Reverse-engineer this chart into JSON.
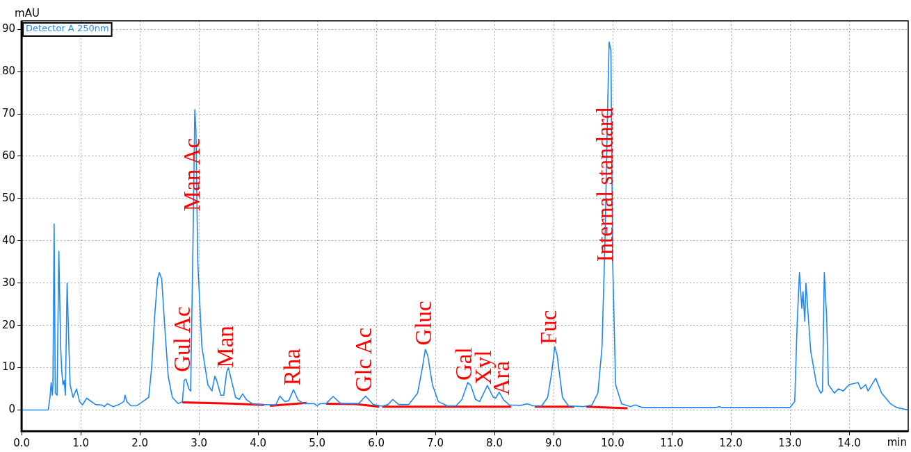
{
  "chart_data": {
    "type": "line",
    "ylabel": "mAU",
    "xlabel": "min",
    "legend": "top left",
    "grid": true,
    "marker": "none",
    "line_style": "solid",
    "xlim": [
      0,
      15
    ],
    "ylim": [
      -5,
      92
    ],
    "xticks": [
      {
        "value": 0,
        "label": "0.0"
      },
      {
        "value": 1,
        "label": "1.0"
      },
      {
        "value": 2,
        "label": "2.0"
      },
      {
        "value": 3,
        "label": "3.0"
      },
      {
        "value": 4,
        "label": "4.0"
      },
      {
        "value": 5,
        "label": "5.0"
      },
      {
        "value": 6,
        "label": "6.0"
      },
      {
        "value": 7,
        "label": "7.0"
      },
      {
        "value": 8,
        "label": "8.0"
      },
      {
        "value": 9,
        "label": "9.0"
      },
      {
        "value": 10,
        "label": "10.0"
      },
      {
        "value": 11,
        "label": "11.0"
      },
      {
        "value": 12,
        "label": "12.0"
      },
      {
        "value": 13,
        "label": "13.0"
      },
      {
        "value": 14,
        "label": "14.0"
      }
    ],
    "yticks": [
      0,
      10,
      20,
      30,
      40,
      50,
      60,
      70,
      80,
      90
    ],
    "series": [
      {
        "name": "Detector A 250nm",
        "color": "#1e88f0",
        "x": [
          0,
          0.45,
          0.48,
          0.5,
          0.52,
          0.53,
          0.55,
          0.57,
          0.6,
          0.63,
          0.66,
          0.68,
          0.7,
          0.72,
          0.74,
          0.77,
          0.8,
          0.82,
          0.87,
          0.93,
          0.98,
          1.03,
          1.1,
          1.15,
          1.25,
          1.35,
          1.4,
          1.45,
          1.55,
          1.65,
          1.73,
          1.75,
          1.78,
          1.85,
          1.95,
          2.05,
          2.15,
          2.2,
          2.25,
          2.3,
          2.33,
          2.37,
          2.42,
          2.48,
          2.55,
          2.65,
          2.72,
          2.75,
          2.78,
          2.83,
          2.86,
          2.9,
          2.93,
          2.95,
          2.98,
          3.05,
          3.15,
          3.22,
          3.27,
          3.3,
          3.37,
          3.42,
          3.47,
          3.5,
          3.55,
          3.62,
          3.68,
          3.74,
          3.8,
          3.9,
          4.05,
          4.3,
          4.37,
          4.45,
          4.52,
          4.6,
          4.68,
          4.78,
          4.95,
          5.0,
          5.05,
          5.15,
          5.27,
          5.4,
          5.7,
          5.82,
          5.95,
          6.1,
          6.2,
          6.28,
          6.38,
          6.55,
          6.7,
          6.78,
          6.83,
          6.87,
          6.95,
          7.05,
          7.2,
          7.35,
          7.45,
          7.55,
          7.6,
          7.68,
          7.75,
          7.88,
          7.98,
          8.02,
          8.08,
          8.15,
          8.25,
          8.45,
          8.55,
          8.65,
          8.8,
          8.9,
          8.97,
          9.02,
          9.06,
          9.15,
          9.25,
          9.5,
          9.65,
          9.75,
          9.82,
          9.87,
          9.92,
          9.94,
          9.97,
          10.0,
          10.05,
          10.15,
          10.3,
          10.38,
          10.5,
          11.75,
          11.8,
          11.85,
          13.0,
          13.08,
          13.12,
          13.16,
          13.2,
          13.22,
          13.25,
          13.27,
          13.3,
          13.35,
          13.4,
          13.45,
          13.52,
          13.55,
          13.58,
          13.62,
          13.65,
          13.75,
          13.82,
          13.9,
          14.0,
          14.15,
          14.2,
          14.28,
          14.32,
          14.45,
          14.55,
          14.7,
          14.8,
          15
        ],
        "values": [
          0,
          0,
          3,
          6.5,
          3.5,
          6,
          44,
          4,
          3.5,
          37.5,
          15,
          9,
          6,
          7,
          3.5,
          30,
          15,
          6,
          3,
          5,
          2,
          1.2,
          2.8,
          2.3,
          1.3,
          1.2,
          0.8,
          1.5,
          0.8,
          1.3,
          2,
          3.5,
          2,
          1,
          1,
          2,
          3,
          10,
          22,
          31,
          32.5,
          31,
          20,
          8,
          3,
          1.5,
          2,
          7,
          7.3,
          5,
          4.5,
          40,
          71,
          66,
          35,
          15,
          6,
          4.5,
          8,
          7,
          3.5,
          3.5,
          9,
          10,
          7,
          3,
          2.5,
          3.8,
          2.5,
          1.5,
          1.3,
          1.2,
          3.3,
          2,
          2.2,
          4.8,
          2.3,
          1.5,
          1.5,
          1,
          1.5,
          1.5,
          3.2,
          1.5,
          1.5,
          3.3,
          1.3,
          0.9,
          1.3,
          2.5,
          1.3,
          1.3,
          4,
          10,
          14.3,
          13,
          6,
          2,
          1,
          1,
          2.5,
          6.5,
          5.8,
          2.5,
          2,
          5.8,
          3,
          2.8,
          4.2,
          2.5,
          1.2,
          1.1,
          1.5,
          1,
          1,
          3,
          9,
          15,
          13,
          3,
          1,
          0.8,
          1.2,
          4,
          15,
          40,
          75,
          87,
          85,
          35,
          6,
          1.5,
          0.8,
          1.2,
          0.6,
          0.6,
          0.8,
          0.6,
          0.6,
          2,
          20,
          32.5,
          24,
          28,
          21,
          30,
          24,
          14,
          10,
          6,
          4,
          4.5,
          32.5,
          22,
          6,
          4,
          5,
          4.5,
          6,
          6.5,
          5,
          6,
          4.5,
          7.5,
          4,
          1.5,
          0.6,
          0
        ]
      },
      {
        "color": "#ff0000",
        "x": [
          2.72,
          3.62,
          4.1,
          4.15,
          4.2,
          4.82,
          4.9,
          5.15,
          5.65,
          6.05,
          6.08,
          6.1,
          8.28,
          8.5,
          8.68,
          9.35,
          9.45,
          9.55,
          10.25
        ],
        "values": [
          1.8,
          1.5,
          1.2,
          null,
          1.0,
          1.7,
          null,
          1.5,
          1.4,
          0.8,
          null,
          0.8,
          0.8,
          null,
          0.8,
          0.8,
          null,
          0.8,
          0.4
        ]
      }
    ],
    "annotations": [
      {
        "text": "Gul Ac",
        "x": 2.74,
        "y": 8
      },
      {
        "text": "Man Ac",
        "x": 2.91,
        "y": 46
      },
      {
        "text": "Man",
        "x": 3.47,
        "y": 9
      },
      {
        "text": "Rha",
        "x": 4.6,
        "y": 4.8
      },
      {
        "text": "Glc Ac",
        "x": 5.82,
        "y": 3.3
      },
      {
        "text": "Gluc",
        "x": 6.83,
        "y": 14.3
      },
      {
        "text": "Gal",
        "x": 7.51,
        "y": 6
      },
      {
        "text": "Xyl",
        "x": 7.84,
        "y": 5
      },
      {
        "text": "Ara",
        "x": 8.15,
        "y": 2.5
      },
      {
        "text": "Fuc",
        "x": 8.95,
        "y": 14.5
      },
      {
        "text": "Internal standard",
        "x": 9.9,
        "y": 34
      }
    ]
  }
}
